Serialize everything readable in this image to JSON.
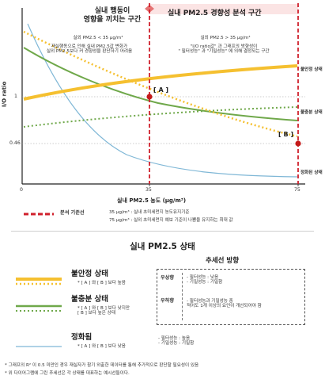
{
  "diagram": {
    "y_axis_label": "I/O ratio",
    "y_ticks": [
      "1",
      "0.46"
    ],
    "x_ticks": [
      "0",
      "35",
      "75"
    ],
    "x_axis_label": "실내 PM2.5 농도 (μg/m³)",
    "zone_left_title": "실내 행동이\n영향을 끼치는 구간",
    "zone_right_title": "실내 PM2.5 경향성 분석 구간",
    "zone_left_sub1": "실외 PM2.5 < 35 μg/m³",
    "zone_left_sub2": "재실행동으로 인해 실내 PM2.5값 변화가\n실외 PM2.5보다 커 경향성을 판단하기 어려움",
    "zone_right_sub1": "실외 PM2.5 > 35 μg/m³",
    "zone_right_sub2": "\"I/O ratio값\" 과 그래프의 방향성이\n\" 필터성능\" 과 \"기밀성능\" 에 의해 결정되는 구간",
    "point_a": "[ A ]",
    "point_b": "[ B ]",
    "curve_labels": [
      "불안정 상태",
      "불충분 상태",
      "정화된 상태"
    ],
    "colors": {
      "unstable": "#f5c030",
      "insufficient": "#6fa84a",
      "clean": "#7fb7d6",
      "reference": "#d0202c",
      "band": "#fbe4e4"
    }
  },
  "reference": {
    "label": "분석 기준선",
    "note1": "35 μg/m³ : 실내 초미세먼지 농도유지기준",
    "note2": "75 μg/m³ : 실외 초미세먼지 예보 기준이 나쁨을 유지하는 최대 값"
  },
  "legend": {
    "title": "실내 PM2.5 상태",
    "trend_header": "추세선 방향",
    "items": [
      {
        "title": "불안정 상태",
        "desc": "* [ A ] 와 [ B ] 보다 높음"
      },
      {
        "title": "불충분 상태",
        "desc": "* [ A ] 와 [ B ] 보다 낮지만\n   [ B ] 보다 높은 상태"
      },
      {
        "title": "정화됨",
        "desc": "* [ A ] 와 [ B ] 보다 낮음"
      }
    ],
    "trend_rows": [
      {
        "direction": "우상향",
        "desc": "- 필터성능 : 낮음\n- 기밀성능 : 기밀함"
      },
      {
        "direction": "우하향",
        "desc": "- 필터성능과 기밀성능 중\n  적어도 1개 이상의 요인이 개선되어야 함"
      },
      {
        "direction": "",
        "desc": "- 필터성능 : 높음\n- 기밀성능 : 기밀함"
      }
    ]
  },
  "footnotes": [
    "* 그래프의 R² 이 0.5 미만인 경우 재실자가 참기 외출한 데이터를 통해 추가적으로 판단할 필요성이 있음",
    "* 위 다이어그램에 그린 추세선은 각 상태를 대표하는 예시선들이다."
  ]
}
